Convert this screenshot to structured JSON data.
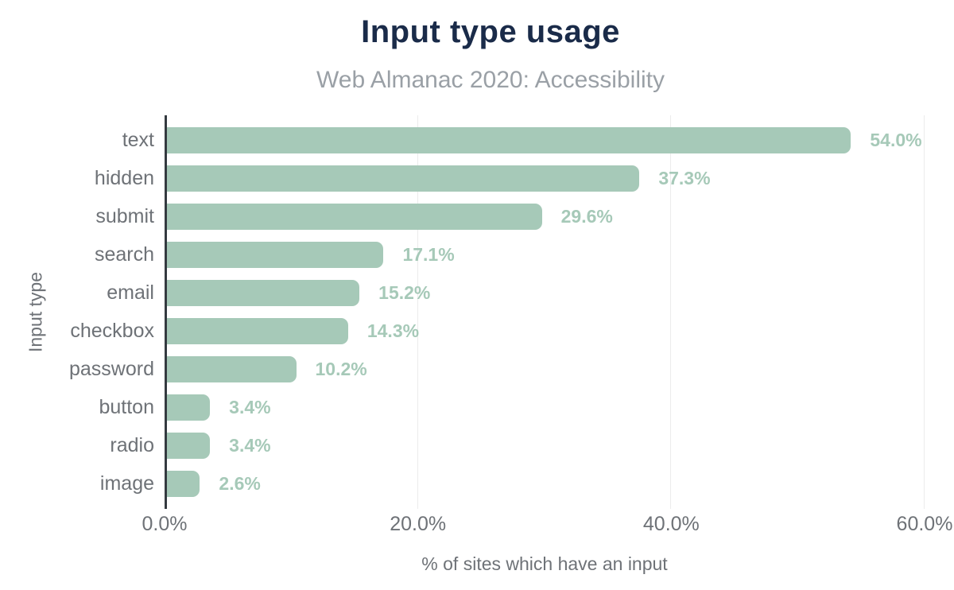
{
  "chart_data": {
    "type": "bar",
    "orientation": "horizontal",
    "title": "Input type usage",
    "subtitle": "Web Almanac 2020: Accessibility",
    "categories": [
      "text",
      "hidden",
      "submit",
      "search",
      "email",
      "checkbox",
      "password",
      "button",
      "radio",
      "image"
    ],
    "values": [
      54.0,
      37.3,
      29.6,
      17.1,
      15.2,
      14.3,
      10.2,
      3.4,
      3.4,
      2.6
    ],
    "value_labels": [
      "54.0%",
      "37.3%",
      "29.6%",
      "17.1%",
      "15.2%",
      "14.3%",
      "10.2%",
      "3.4%",
      "3.4%",
      "2.6%"
    ],
    "xlabel": "% of sites which have an input",
    "ylabel": "Input type",
    "x_ticks": [
      "0.0%",
      "20.0%",
      "40.0%",
      "60.0%"
    ],
    "x_tick_values": [
      0,
      20,
      40,
      60
    ],
    "xlim": [
      0,
      60
    ],
    "grid": "vertical gridlines at 20/40/60, light gray",
    "legend": "none",
    "colors": {
      "bar": "#a6c9b8",
      "value_label": "#a6c9b8",
      "title": "#1a2b49",
      "subtitle": "#9aa0a6",
      "axis_labels": "#6e7277",
      "axis_line": "#343a40",
      "gridline": "#ececec",
      "background": "#ffffff"
    }
  }
}
